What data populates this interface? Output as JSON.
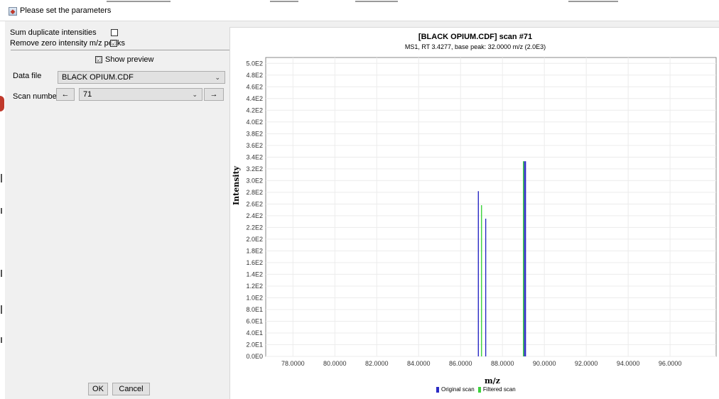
{
  "window": {
    "title": "Please set the parameters"
  },
  "params": {
    "sum_duplicate_label": "Sum duplicate intensities",
    "sum_duplicate_checked": false,
    "remove_zero_label": "Remove zero intensity m/z peaks",
    "remove_zero_checked": true,
    "show_preview_label": "Show preview",
    "show_preview_checked": true,
    "data_file_label": "Data file",
    "data_file_value": "BLACK OPIUM.CDF",
    "scan_number_label": "Scan number",
    "scan_number_value": "71",
    "prev_label": "←",
    "next_label": "→",
    "ok_label": "OK",
    "cancel_label": "Cancel"
  },
  "icons": {
    "checkmark": "☑",
    "dropdown": "chevron-down-icon"
  },
  "chart_data": {
    "type": "bar",
    "title": "[BLACK OPIUM.CDF] scan #71",
    "subtitle": "MS1, RT 3.4277, base peak: 32.0000 m/z (2.0E3)",
    "xlabel": "m/z",
    "ylabel": "Intensity",
    "xlim": [
      76.7,
      98.2
    ],
    "ylim": [
      0,
      510
    ],
    "x_ticks": [
      78,
      80,
      82,
      84,
      86,
      88,
      90,
      92,
      94,
      96
    ],
    "x_tick_labels": [
      "78.0000",
      "80.0000",
      "82.0000",
      "84.0000",
      "86.0000",
      "88.0000",
      "90.0000",
      "92.0000",
      "94.0000",
      "96.0000"
    ],
    "y_ticks": [
      0,
      20,
      40,
      60,
      80,
      100,
      120,
      140,
      160,
      180,
      200,
      220,
      240,
      260,
      280,
      300,
      320,
      340,
      360,
      380,
      400,
      420,
      440,
      460,
      480,
      500
    ],
    "y_tick_labels": [
      "0.0E0",
      "2.0E1",
      "4.0E1",
      "6.0E1",
      "8.0E1",
      "1.0E2",
      "1.2E2",
      "1.4E2",
      "1.6E2",
      "1.8E2",
      "2.0E2",
      "2.2E2",
      "2.4E2",
      "2.6E2",
      "2.8E2",
      "3.0E2",
      "3.2E2",
      "3.4E2",
      "3.6E2",
      "3.8E2",
      "4.0E2",
      "4.2E2",
      "4.4E2",
      "4.6E2",
      "4.8E2",
      "5.0E2"
    ],
    "grid": true,
    "legend_position": "bottom-center",
    "series": [
      {
        "name": "Original scan",
        "color": "#2b2bc4",
        "points": [
          {
            "x": 86.85,
            "y": 282
          },
          {
            "x": 87.2,
            "y": 235
          },
          {
            "x": 89.05,
            "y": 333
          },
          {
            "x": 89.1,
            "y": 333
          }
        ]
      },
      {
        "name": "Filtered scan",
        "color": "#3cd23c",
        "points": [
          {
            "x": 87.0,
            "y": 258
          },
          {
            "x": 89.0,
            "y": 333
          }
        ]
      }
    ]
  }
}
